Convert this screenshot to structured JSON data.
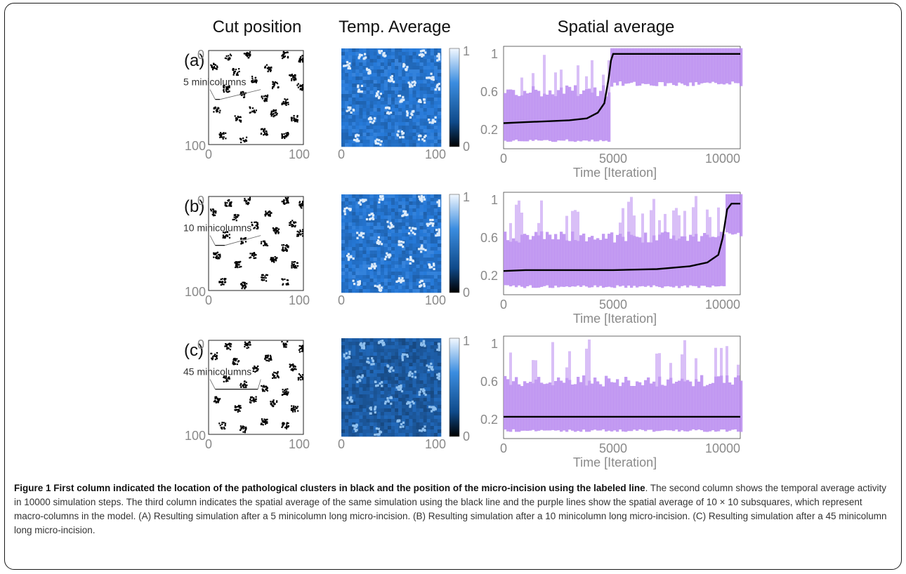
{
  "figure": {
    "column_titles": [
      "Cut position",
      "Temp. Average",
      "Spatial average"
    ],
    "rows": [
      {
        "panel_label": "(a)",
        "cut_label": "5 minicolumns",
        "cut_len": 5,
        "switch_at": 4800,
        "high_level": 1.0,
        "heatmap_tone": "light"
      },
      {
        "panel_label": "(b)",
        "cut_label": "10 minicolumns",
        "cut_len": 10,
        "switch_at": 10100,
        "high_level": 0.96,
        "heatmap_tone": "light"
      },
      {
        "panel_label": "(c)",
        "cut_label": "45 minicolumns",
        "cut_len": 45,
        "switch_at": null,
        "high_level": 0.23,
        "heatmap_tone": "dark"
      }
    ],
    "cut_axis_ticks": {
      "x": [
        "0",
        "100"
      ],
      "y": [
        "0",
        "100"
      ]
    },
    "heatmap_axis_ticks": {
      "x": [
        "0",
        "100"
      ]
    },
    "colorbar_ticks": [
      "1",
      "0"
    ],
    "colors": {
      "cluster": "#000000",
      "heatmap_base": "#2f7fd0",
      "heatmap_bright": "#dcebfa",
      "purple": "#b98af0",
      "mean_line": "#000000",
      "axis_text": "#8a8a8a"
    }
  },
  "chart_data": [
    {
      "type": "line",
      "xlabel": "Time [Iteration]",
      "ylabel": "",
      "xticks": [
        0,
        5000,
        10000
      ],
      "yticks": [
        0.2,
        0.6,
        1
      ],
      "xlim": [
        0,
        10800
      ],
      "ylim": [
        0,
        1.08
      ],
      "series": [
        {
          "values_x": [
            0,
            1000,
            2000,
            3000,
            3800,
            4300,
            4600,
            4800,
            4900,
            5000,
            5500,
            7000,
            9000,
            10800
          ],
          "values_y": [
            0.27,
            0.28,
            0.29,
            0.3,
            0.32,
            0.38,
            0.48,
            0.75,
            0.93,
            1.0,
            1.0,
            1.0,
            1.0,
            1.0
          ]
        }
      ]
    },
    {
      "type": "line",
      "xlabel": "Time [Iteration]",
      "ylabel": "",
      "xticks": [
        0,
        5000,
        10000
      ],
      "yticks": [
        0.2,
        0.6,
        1
      ],
      "xlim": [
        0,
        10800
      ],
      "ylim": [
        0,
        1.08
      ],
      "series": [
        {
          "values_x": [
            0,
            1000,
            3000,
            5000,
            7000,
            8500,
            9300,
            9800,
            10000,
            10200,
            10400,
            10800
          ],
          "values_y": [
            0.25,
            0.26,
            0.26,
            0.26,
            0.27,
            0.3,
            0.34,
            0.42,
            0.6,
            0.9,
            0.96,
            0.96
          ]
        }
      ]
    },
    {
      "type": "line",
      "xlabel": "Time [Iteration]",
      "ylabel": "",
      "xticks": [
        0,
        5000,
        10000
      ],
      "yticks": [
        0.2,
        0.6,
        1
      ],
      "xlim": [
        0,
        10800
      ],
      "ylim": [
        0,
        1.08
      ],
      "series": [
        {
          "values_x": [
            0,
            2000,
            4000,
            6000,
            8000,
            10000,
            10800
          ],
          "values_y": [
            0.23,
            0.23,
            0.23,
            0.23,
            0.23,
            0.23,
            0.23
          ]
        }
      ]
    }
  ],
  "caption": {
    "bold": "Figure 1 First column indicated the location of the pathological clusters in black and the position of the micro-incision using the labeled line",
    "rest": ". The second column shows the temporal average activity in 10000 simulation steps. The third column indicates the spatial average of the same simulation using the black line and the purple lines show the spatial average of 10 × 10 subsquares, which represent macro-columns in the model. (A) Resulting simulation after a 5 minicolumn long micro-incision. (B) Resulting simulation after a 10 minicolumn long micro-incision. (C) Resulting simulation after a 45 minicolumn long micro-incision."
  }
}
